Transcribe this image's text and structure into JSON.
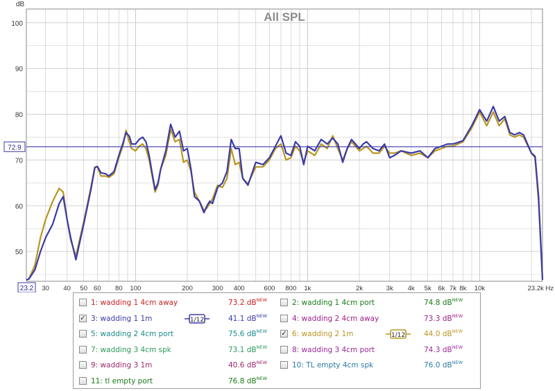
{
  "chart_data": {
    "type": "line",
    "title": "All SPL",
    "ylabel": "dB",
    "xlabel": "",
    "x_unit": "Hz",
    "xscale": "log",
    "xlim": [
      23.2,
      23200
    ],
    "ylim": [
      43.5,
      103
    ],
    "x_tick_labels": [
      "23.2",
      "30",
      "40",
      "50",
      "60",
      "80",
      "100",
      "200",
      "300",
      "400",
      "600",
      "800",
      "1k",
      "2k",
      "3k",
      "4k",
      "5k",
      "6k",
      "7k",
      "8k",
      "10k",
      "23.2k Hz"
    ],
    "x_tick_values": [
      23.2,
      30,
      40,
      50,
      60,
      80,
      100,
      200,
      300,
      400,
      600,
      800,
      1000,
      2000,
      3000,
      4000,
      5000,
      6000,
      7000,
      8000,
      10000,
      23200
    ],
    "y_tick_values": [
      50,
      60,
      70,
      80,
      90,
      100
    ],
    "y_tick_labels": [
      "50",
      "60",
      "70",
      "80",
      "90",
      "100"
    ],
    "reference_line": {
      "value": 72.9,
      "label": "72.9"
    },
    "grid": true,
    "series": [
      {
        "name": "3: wadding 1 1m",
        "color": "#3a3aa8",
        "x": [
          23.2,
          24,
          26,
          28,
          30,
          33,
          36,
          38,
          40,
          42,
          45,
          50,
          55,
          58,
          60,
          63,
          67,
          70,
          75,
          80,
          85,
          88,
          92,
          95,
          100,
          105,
          110,
          115,
          120,
          125,
          130,
          135,
          140,
          150,
          160,
          170,
          180,
          190,
          200,
          210,
          220,
          235,
          250,
          260,
          270,
          280,
          300,
          320,
          340,
          360,
          380,
          400,
          420,
          450,
          500,
          550,
          600,
          650,
          700,
          750,
          800,
          850,
          900,
          950,
          1000,
          1050,
          1100,
          1200,
          1300,
          1400,
          1500,
          1600,
          1700,
          1800,
          2000,
          2100,
          2200,
          2400,
          2600,
          2800,
          3000,
          3200,
          3500,
          4000,
          4500,
          5000,
          5500,
          6000,
          6500,
          7000,
          8000,
          9000,
          10000,
          11000,
          12000,
          13000,
          14000,
          15000,
          16000,
          17000,
          18000,
          20000,
          21000,
          22000,
          23200
        ],
        "y": [
          43.8,
          44,
          46,
          50,
          53,
          56,
          60.5,
          62,
          57,
          53,
          48.2,
          56,
          63.5,
          68.3,
          68.6,
          67.2,
          67,
          66.5,
          67.5,
          71,
          74,
          76,
          75.2,
          73.5,
          73.5,
          74.5,
          75,
          74,
          71,
          67,
          63.5,
          65,
          68,
          72,
          77.8,
          75,
          76.3,
          72,
          72.5,
          68,
          62,
          61,
          58.5,
          60,
          61,
          60.5,
          64,
          65,
          67.5,
          74.5,
          72.5,
          72.5,
          66,
          64.5,
          69.5,
          69,
          70.5,
          73,
          75.3,
          71.5,
          71,
          74,
          73,
          69,
          73,
          72.5,
          72,
          74.5,
          73.5,
          74.8,
          73.5,
          69.5,
          72.5,
          74.5,
          72.5,
          73.5,
          74,
          72.5,
          72,
          73.5,
          70.5,
          71,
          72,
          71.5,
          72,
          70.5,
          72.5,
          73,
          73.5,
          73.5,
          74.2,
          77.5,
          81,
          78.5,
          81.7,
          78.5,
          79.5,
          76,
          75.5,
          76,
          75.5,
          71.5,
          70.8,
          62,
          43.8
        ]
      },
      {
        "name": "6: wadding 2 1m",
        "color": "#b89520",
        "x": [
          23.2,
          24,
          26,
          28,
          30,
          33,
          36,
          38,
          40,
          42,
          45,
          50,
          55,
          58,
          60,
          63,
          67,
          70,
          75,
          80,
          85,
          88,
          92,
          95,
          100,
          105,
          110,
          115,
          120,
          125,
          130,
          135,
          140,
          150,
          160,
          170,
          180,
          190,
          200,
          210,
          220,
          235,
          250,
          260,
          270,
          280,
          300,
          320,
          340,
          360,
          380,
          400,
          420,
          450,
          500,
          550,
          600,
          650,
          700,
          750,
          800,
          850,
          900,
          950,
          1000,
          1050,
          1100,
          1200,
          1300,
          1400,
          1500,
          1600,
          1700,
          1800,
          2000,
          2100,
          2200,
          2400,
          2600,
          2800,
          3000,
          3200,
          3500,
          4000,
          4500,
          5000,
          5500,
          6000,
          6500,
          7000,
          8000,
          9000,
          10000,
          11000,
          12000,
          13000,
          14000,
          15000,
          16000,
          17000,
          18000,
          20000,
          21000,
          22000,
          23200
        ],
        "y": [
          43.8,
          44,
          47,
          53,
          57,
          61,
          63.8,
          63,
          57,
          52.5,
          49,
          56.5,
          64,
          68.5,
          68.5,
          66.5,
          66.5,
          66.2,
          67,
          70.5,
          73.5,
          76.5,
          74,
          72.5,
          72,
          73,
          73.5,
          72.5,
          70,
          66.5,
          63,
          64.5,
          68,
          71,
          76.7,
          74,
          74.5,
          69.5,
          70,
          67.5,
          63,
          61,
          59,
          59.5,
          60.5,
          61.5,
          64.5,
          64,
          66,
          72.5,
          69,
          69.5,
          66,
          64.8,
          68.5,
          68.5,
          70,
          72.5,
          73.5,
          70,
          70.5,
          73,
          72,
          69.5,
          72,
          71.5,
          71,
          73.5,
          72.5,
          75.3,
          72.5,
          70,
          72.5,
          74,
          72,
          72.5,
          73,
          71.5,
          71.5,
          73,
          71.5,
          71.5,
          72,
          71,
          71.5,
          70.5,
          72,
          72.5,
          73,
          73,
          74,
          77,
          80.5,
          77.5,
          80.5,
          77.5,
          79,
          75.5,
          75,
          75.5,
          75,
          71.5,
          70.5,
          61,
          43.8
        ]
      }
    ]
  },
  "legend": {
    "entries": [
      {
        "label": "1: wadding 1 4cm away",
        "value": "73.2 dB",
        "tag": "NEW",
        "checked": false,
        "color": "#c82020",
        "smoothing": ""
      },
      {
        "label": "2: wadding 1 4cm port",
        "value": "74.8 dB",
        "tag": "NEW",
        "checked": false,
        "color": "#1a7a1a",
        "smoothing": ""
      },
      {
        "label": "3: wadding 1 1m",
        "value": "41.1 dB",
        "tag": "NEW",
        "checked": true,
        "color": "#3a3aa8",
        "smoothing": "1/12"
      },
      {
        "label": "4: wadding 2 4cm away",
        "value": "73.3 dB",
        "tag": "NEW",
        "checked": false,
        "color": "#a0208a",
        "smoothing": ""
      },
      {
        "label": "5: wadding 2 4cm port",
        "value": "75.6 dB",
        "tag": "NEW",
        "checked": false,
        "color": "#1a8a8a",
        "smoothing": ""
      },
      {
        "label": "6: wadding 2 1m",
        "value": "44.0 dB",
        "tag": "NEW",
        "checked": true,
        "color": "#b89520",
        "smoothing": "1/12"
      },
      {
        "label": "7: wadding 3 4cm spk",
        "value": "73.1 dB",
        "tag": "NEW",
        "checked": false,
        "color": "#2a9a5a",
        "smoothing": ""
      },
      {
        "label": "8: wadding 3 4cm port",
        "value": "74.3 dB",
        "tag": "NEW",
        "checked": false,
        "color": "#9a2a9a",
        "smoothing": ""
      },
      {
        "label": "9: wadding 3 1m",
        "value": "40.6 dB",
        "tag": "NEW",
        "checked": false,
        "color": "#9a2a6a",
        "smoothing": ""
      },
      {
        "label": "10: TL empty 4cm spk",
        "value": "76.0 dB",
        "tag": "NEW",
        "checked": false,
        "color": "#2a7aa0",
        "smoothing": ""
      },
      {
        "label": "11: tl empty port",
        "value": "76.8 dB",
        "tag": "NEW",
        "checked": false,
        "color": "#1a7a1a",
        "smoothing": ""
      }
    ]
  },
  "colors": {
    "frame": "#8a8a8a",
    "grid": "#d0d0d0",
    "reference": "#3a3aa8",
    "title": "#8a8a8a"
  }
}
